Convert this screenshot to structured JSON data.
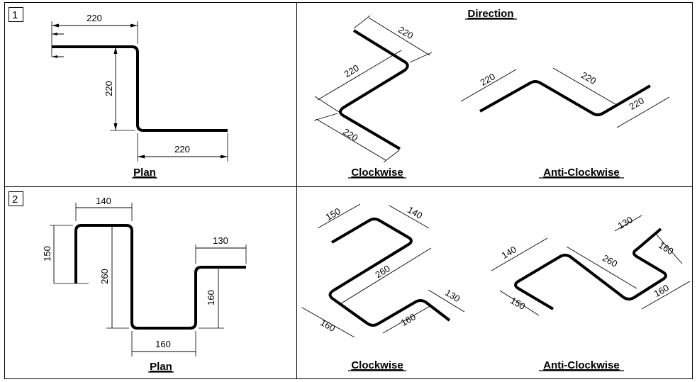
{
  "panels": [
    {
      "index": "1"
    },
    {
      "index": "2"
    }
  ],
  "titles": {
    "direction": "Direction",
    "plan": "Plan",
    "clockwise": "Clockwise",
    "anticlockwise": "Anti-Clockwise"
  },
  "shape1": {
    "plan_dims": [
      "220",
      "220",
      "220"
    ],
    "clockwise_dims": [
      "220",
      "220",
      "220"
    ],
    "anticlockwise_dims": [
      "220",
      "220",
      "220"
    ]
  },
  "shape2": {
    "plan_dims": [
      "140",
      "150",
      "260",
      "160",
      "160",
      "130"
    ],
    "clockwise_dims": [
      "150",
      "140",
      "260",
      "160",
      "160",
      "130"
    ],
    "anticlockwise_dims": [
      "130",
      "160",
      "140",
      "260",
      "160",
      "150"
    ]
  }
}
